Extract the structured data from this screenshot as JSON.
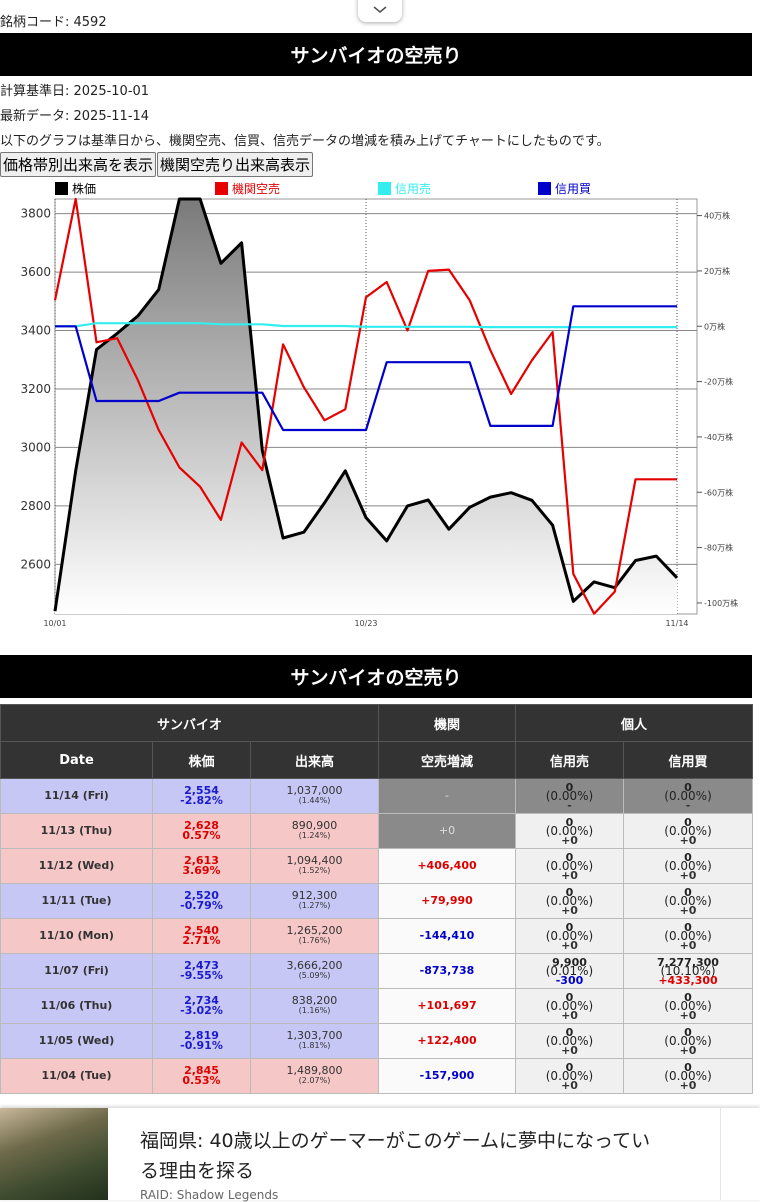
{
  "top_bar": {
    "stock_code": "銘柄コード: 4592"
  },
  "header": {
    "title": "サンバイオの空売り"
  },
  "info": {
    "calc_date": "計算基準日: 2025-10-01",
    "latest": "最新データ: 2025-11-14",
    "description": "以下のグラフは基準日から、機関空売、信買、信売データの増減を積み上げてチャートにしたものです。"
  },
  "buttons": [
    "価格帯別出来高を表示",
    "機関空売り出来高表示"
  ],
  "chart_data": {
    "type": "line",
    "categories": [
      "10/01",
      null,
      null,
      null,
      null,
      null,
      null,
      null,
      null,
      null,
      null,
      null,
      null,
      null,
      null,
      "10/23",
      null,
      null,
      null,
      null,
      null,
      null,
      null,
      null,
      null,
      null,
      null,
      null,
      null,
      null,
      "11/14"
    ],
    "series": [
      {
        "name": "株価",
        "color": "#000000",
        "area": true,
        "values": [
          2440,
          2920,
          3335,
          3390,
          3450,
          3540,
          3850,
          3850,
          3630,
          3700,
          2990,
          2690,
          2710,
          2810,
          2920,
          2760,
          2680,
          2800,
          2820,
          2720,
          2795,
          2830,
          2845,
          2819,
          2734,
          2473,
          2540,
          2520,
          2613,
          2628,
          2554
        ]
      },
      {
        "name": "機関空売",
        "color": "#e60000",
        "axis": "y2",
        "values": [
          9.4,
          46,
          -5.8,
          -4.3,
          -19.5,
          -37.5,
          -51,
          -58,
          -70,
          -42,
          -52,
          -6.5,
          -22,
          -34,
          -30,
          10.5,
          16,
          -1.5,
          20,
          20.5,
          9.4,
          -8.7,
          -24.5,
          -12.3,
          -2.1,
          -89.5,
          -103.9,
          -95.9,
          -55.3,
          -55.3,
          -55.3
        ]
      },
      {
        "name": "信用売",
        "color": "#33eeee",
        "axis": "y2",
        "values": [
          0,
          0,
          1.1,
          1.1,
          1.1,
          1.1,
          1.1,
          1.1,
          0.7,
          0.7,
          0.7,
          0.1,
          0.1,
          0.1,
          0.1,
          -0.2,
          -0.2,
          -0.2,
          -0.2,
          -0.2,
          -0.2,
          -0.3,
          -0.3,
          -0.3,
          -0.3,
          -0.3,
          -0.3,
          -0.3,
          -0.3,
          -0.3,
          -0.3
        ]
      },
      {
        "name": "信用買",
        "color": "#0000cc",
        "axis": "y2",
        "values": [
          0,
          0,
          -27,
          -27,
          -27,
          -27,
          -24,
          -24,
          -24,
          -24,
          -24,
          -37.5,
          -37.5,
          -37.5,
          -37.5,
          -37.5,
          -13,
          -13,
          -13,
          -13,
          -13,
          -36,
          -36,
          -36,
          -36,
          7.2,
          7.2,
          7.2,
          7.2,
          7.2,
          7.2
        ]
      }
    ],
    "ylim": [
      2430,
      3850
    ],
    "yticks": [
      2600,
      2800,
      3000,
      3200,
      3400,
      3600,
      3800
    ],
    "y2lim": [
      -104,
      46
    ],
    "y2ticks": [
      {
        "value": 40,
        "label": "40万株"
      },
      {
        "value": 20,
        "label": "20万株"
      },
      {
        "value": 0,
        "label": "0万株"
      },
      {
        "value": -20,
        "label": "-20万株"
      },
      {
        "value": -40,
        "label": "-40万株"
      },
      {
        "value": -60,
        "label": "-60万株"
      },
      {
        "value": -80,
        "label": "-80万株"
      },
      {
        "value": -100,
        "label": "-100万株"
      }
    ],
    "grid": true
  },
  "table": {
    "group_headers": [
      "サンバイオ",
      "機関",
      "個人"
    ],
    "columns": [
      "Date",
      "株価",
      "出来高",
      "空売増減",
      "信用売",
      "信用買"
    ],
    "rows": [
      {
        "date": "11/14 (Fri)",
        "price": "2,554",
        "price_change": "-2.82%",
        "volume": "1,037,000",
        "volume_ratio": "(1.44%)",
        "short_change": "-",
        "credit_sell": [
          "0",
          "(0.00%)",
          "-"
        ],
        "credit_buy": [
          "0",
          "(0.00%)",
          "-"
        ]
      },
      {
        "date": "11/13 (Thu)",
        "price": "2,628",
        "price_change": "0.57%",
        "volume": "890,900",
        "volume_ratio": "(1.24%)",
        "short_change": "+0",
        "credit_sell": [
          "0",
          "(0.00%)",
          "+0"
        ],
        "credit_buy": [
          "0",
          "(0.00%)",
          "+0"
        ]
      },
      {
        "date": "11/12 (Wed)",
        "price": "2,613",
        "price_change": "3.69%",
        "volume": "1,094,400",
        "volume_ratio": "(1.52%)",
        "short_change": "+406,400",
        "credit_sell": [
          "0",
          "(0.00%)",
          "+0"
        ],
        "credit_buy": [
          "0",
          "(0.00%)",
          "+0"
        ]
      },
      {
        "date": "11/11 (Tue)",
        "price": "2,520",
        "price_change": "-0.79%",
        "volume": "912,300",
        "volume_ratio": "(1.27%)",
        "short_change": "+79,990",
        "credit_sell": [
          "0",
          "(0.00%)",
          "+0"
        ],
        "credit_buy": [
          "0",
          "(0.00%)",
          "+0"
        ]
      },
      {
        "date": "11/10 (Mon)",
        "price": "2,540",
        "price_change": "2.71%",
        "volume": "1,265,200",
        "volume_ratio": "(1.76%)",
        "short_change": "-144,410",
        "credit_sell": [
          "0",
          "(0.00%)",
          "+0"
        ],
        "credit_buy": [
          "0",
          "(0.00%)",
          "+0"
        ]
      },
      {
        "date": "11/07 (Fri)",
        "price": "2,473",
        "price_change": "-9.55%",
        "volume": "3,666,200",
        "volume_ratio": "(5.09%)",
        "short_change": "-873,738",
        "credit_sell": [
          "9,900",
          "(0.01%)",
          "-300"
        ],
        "credit_buy": [
          "7,277,300",
          "(10.10%)",
          "+433,300"
        ]
      },
      {
        "date": "11/06 (Thu)",
        "price": "2,734",
        "price_change": "-3.02%",
        "volume": "838,200",
        "volume_ratio": "(1.16%)",
        "short_change": "+101,697",
        "credit_sell": [
          "0",
          "(0.00%)",
          "+0"
        ],
        "credit_buy": [
          "0",
          "(0.00%)",
          "+0"
        ]
      },
      {
        "date": "11/05 (Wed)",
        "price": "2,819",
        "price_change": "-0.91%",
        "volume": "1,303,700",
        "volume_ratio": "(1.81%)",
        "short_change": "+122,400",
        "credit_sell": [
          "0",
          "(0.00%)",
          "+0"
        ],
        "credit_buy": [
          "0",
          "(0.00%)",
          "+0"
        ]
      },
      {
        "date": "11/04 (Tue)",
        "price": "2,845",
        "price_change": "0.53%",
        "volume": "1,489,800",
        "volume_ratio": "(2.07%)",
        "short_change": "-157,900",
        "credit_sell": [
          "0",
          "(0.00%)",
          "+0"
        ],
        "credit_buy": [
          "0",
          "(0.00%)",
          "+0"
        ]
      }
    ]
  },
  "ad": {
    "headline": "福岡県: 40歳以上のゲーマーがこのゲームに夢中になっている理由を探る",
    "source": "RAID: Shadow Legends"
  }
}
